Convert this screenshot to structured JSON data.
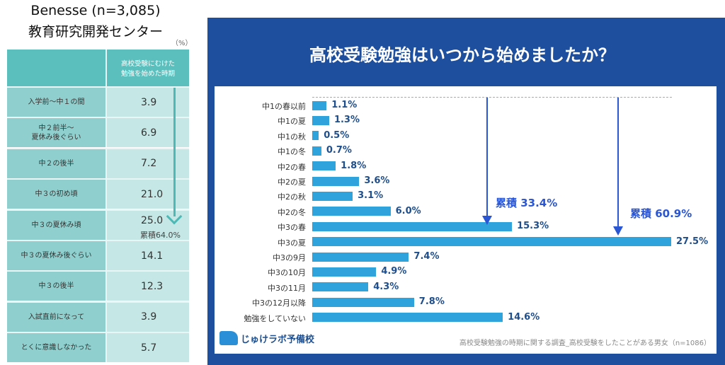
{
  "left_table": {
    "title_line1": "Benesse (n=3,085)",
    "title_line2": "教育研究開発センター",
    "unit": "（%）",
    "column_header": "高校受験にむけた\n勉強を始めた時期",
    "rows": [
      {
        "label": "入学前〜中１の間",
        "value": "3.9"
      },
      {
        "label": "中２前半〜\n夏休み後ぐらい",
        "value": "6.9"
      },
      {
        "label": "中２の後半",
        "value": "7.2"
      },
      {
        "label": "中３の初め頃",
        "value": "21.0"
      },
      {
        "label": "中３の夏休み頃",
        "value": "25.0"
      },
      {
        "label": "中３の夏休み後ぐらい",
        "value": "14.1"
      },
      {
        "label": "中３の後半",
        "value": "12.3"
      },
      {
        "label": "入試直前になって",
        "value": "3.9"
      },
      {
        "label": "とくに意識しなかった",
        "value": "5.7"
      }
    ],
    "cumulative_label": "累積64.0%",
    "colors": {
      "header": "#5bbfbd",
      "label_cell": "#8fd0ce",
      "value_cell": "#c5e7e5",
      "arrow": "#4cb9b6"
    }
  },
  "chart_data": {
    "type": "bar",
    "orientation": "horizontal",
    "title": "高校受験勉強はいつから始めましたか？",
    "categories": [
      "中1の春以前",
      "中1の夏",
      "中1の秋",
      "中1の冬",
      "中2の春",
      "中2の夏",
      "中2の秋",
      "中2の冬",
      "中3の春",
      "中3の夏",
      "中3の9月",
      "中3の10月",
      "中3の11月",
      "中3の12月以降",
      "勉強をしていない"
    ],
    "values": [
      1.1,
      1.3,
      0.5,
      0.7,
      1.8,
      3.6,
      3.1,
      6.0,
      15.3,
      27.5,
      7.4,
      4.9,
      4.3,
      7.8,
      14.6
    ],
    "value_labels": [
      "1.1%",
      "1.3%",
      "0.5%",
      "0.7%",
      "1.8%",
      "3.6%",
      "3.1%",
      "6.0%",
      "15.3%",
      "27.5%",
      "7.4%",
      "4.9%",
      "4.3%",
      "7.8%",
      "14.6%"
    ],
    "annotations": [
      {
        "text": "累積 33.4%",
        "through": "中3の春"
      },
      {
        "text": "累積 60.9%",
        "through": "中3の夏"
      }
    ],
    "source": "高校受験勉強の時期に関する調査_高校受験をしたことがある男女（n=1086）",
    "logo_text": "じゅけラボ予備校",
    "colors": {
      "bar": "#2ea3dc",
      "value_label": "#1f4e8c",
      "arrow": "#2a56d4",
      "frame": "#1e4f9e"
    }
  }
}
